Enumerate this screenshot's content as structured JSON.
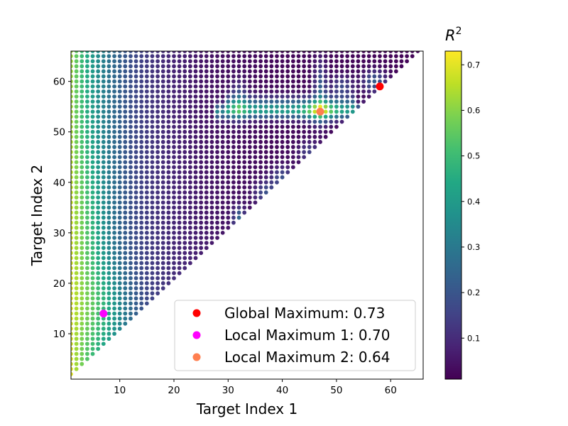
{
  "chart_data": {
    "type": "scatter",
    "xlabel": "Target Index 1",
    "ylabel": "Target Index 2",
    "xlim": [
      1,
      66
    ],
    "ylim": [
      1,
      66
    ],
    "xticks": [
      10,
      20,
      30,
      40,
      50,
      60
    ],
    "yticks": [
      10,
      20,
      30,
      40,
      50,
      60
    ],
    "grid": false,
    "colormap": "viridis",
    "colorbar": {
      "title_base": "R",
      "title_sup": "2",
      "range": [
        0.01,
        0.73
      ],
      "ticks": [
        0.1,
        0.2,
        0.3,
        0.4,
        0.5,
        0.6,
        0.7
      ]
    },
    "point_grid": {
      "i_min": 1,
      "i_max": 65,
      "domain": "j > i",
      "value": "R^2"
    },
    "markers": [
      {
        "label": "Global Maximum: 0.73",
        "x": 58,
        "y": 59,
        "color": "#ff0000"
      },
      {
        "label": "Local Maximum 1: 0.70",
        "x": 7,
        "y": 14,
        "color": "#ff00ff"
      },
      {
        "label": "Local Maximum 2: 0.64",
        "x": 47,
        "y": 54,
        "color": "#ff7f50"
      }
    ],
    "legend_position": "lower right"
  }
}
